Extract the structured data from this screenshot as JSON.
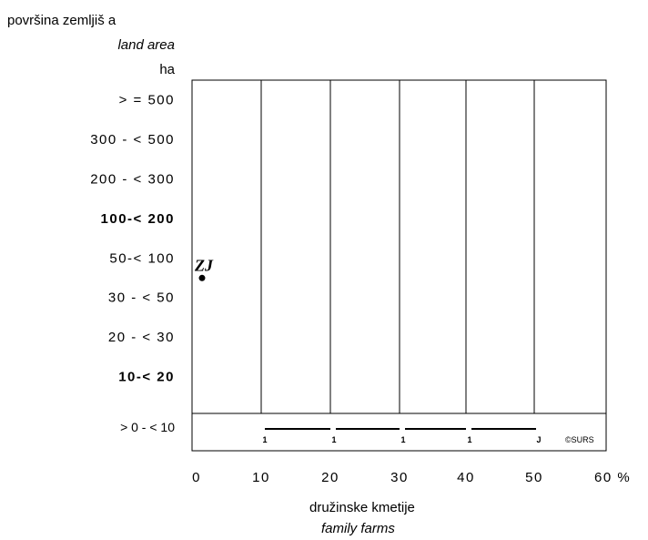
{
  "chart_data": {
    "type": "scatter",
    "ylabel": [
      "površina zemljiš a",
      "land area",
      "ha"
    ],
    "xlabel": [
      "družinske kmetije",
      "family farms"
    ],
    "categories": [
      "> = 500",
      "300 - < 500",
      "200 - < 300",
      "100-< 200",
      "50-< 100",
      "30 - < 50",
      "20 - < 30",
      "10-< 20",
      "> 0 - < 10"
    ],
    "bold_categories": [
      "100-< 200",
      "10-< 20"
    ],
    "x_ticks": [
      "0",
      "10",
      "20",
      "30",
      "40",
      "50",
      "60 %"
    ],
    "xlim": [
      0,
      60
    ],
    "points": [
      {
        "label": "ZJ",
        "category": "50-< 100",
        "x": 1.5
      }
    ],
    "bottom_row_markers": [
      "1",
      "1",
      "1",
      "1",
      "J"
    ],
    "copyright": "©SURS"
  }
}
